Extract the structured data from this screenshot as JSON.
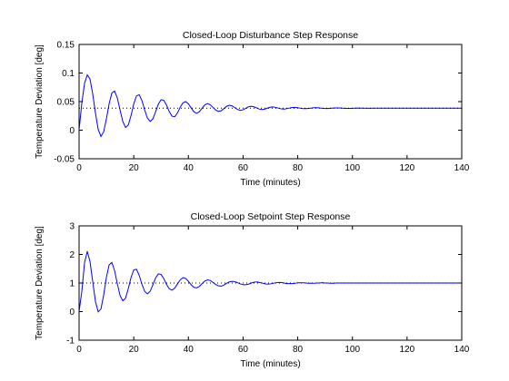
{
  "chart_data": [
    {
      "type": "line",
      "title": "Closed-Loop Disturbance Step Response",
      "xlabel": "Time (minutes)",
      "ylabel": "Temperature Deviation [deg]",
      "xlim": [
        0,
        140
      ],
      "ylim": [
        -0.05,
        0.15
      ],
      "xticks": [
        0,
        20,
        40,
        60,
        80,
        100,
        120,
        140
      ],
      "yticks": [
        -0.05,
        0,
        0.05,
        0.1,
        0.15
      ],
      "xtick_labels": [
        "0",
        "20",
        "40",
        "60",
        "80",
        "100",
        "120",
        "140"
      ],
      "ytick_labels": [
        "-0.05",
        "0",
        "0.05",
        "0.1",
        "0.15"
      ],
      "grid": false,
      "series": [
        {
          "style": "solid",
          "color": "#0000ff",
          "x": [
            0,
            1,
            2,
            3,
            4,
            5,
            6,
            7,
            8,
            9,
            10,
            11,
            12,
            13,
            14,
            15,
            16,
            17,
            18,
            19,
            20,
            21,
            22,
            23,
            24,
            25,
            26,
            27,
            28,
            29,
            30,
            31,
            32,
            33,
            34,
            35,
            36,
            37,
            38,
            39,
            40,
            41,
            42,
            43,
            44,
            45,
            46,
            47,
            48,
            49,
            50,
            51,
            52,
            53,
            54,
            55,
            56,
            57,
            58,
            59,
            60,
            61,
            62,
            63,
            64,
            65,
            66,
            67,
            68,
            69,
            70,
            71,
            72,
            73,
            74,
            75,
            76,
            77,
            78,
            79,
            80,
            81,
            82,
            83,
            84,
            85,
            86,
            87,
            88,
            89,
            90,
            91,
            92,
            93,
            94,
            95,
            96,
            97,
            98,
            99,
            100,
            102,
            104,
            106,
            108,
            110,
            115,
            120,
            125,
            130,
            135,
            140
          ],
          "y": [
            0,
            0.0473,
            0.0819,
            0.0968,
            0.0893,
            0.0632,
            0.0296,
            0.0012,
            -0.0109,
            -0.0029,
            0.0198,
            0.0465,
            0.0651,
            0.0684,
            0.0562,
            0.0352,
            0.0151,
            0.0048,
            0.0089,
            0.0253,
            0.0458,
            0.06,
            0.062,
            0.0518,
            0.0355,
            0.0212,
            0.0153,
            0.0198,
            0.0322,
            0.0456,
            0.0533,
            0.0523,
            0.0437,
            0.0325,
            0.0245,
            0.0237,
            0.0301,
            0.04,
            0.0478,
            0.05,
            0.0461,
            0.039,
            0.0322,
            0.0295,
            0.0322,
            0.0384,
            0.0442,
            0.0465,
            0.0444,
            0.0398,
            0.0352,
            0.0328,
            0.0339,
            0.0378,
            0.0419,
            0.0437,
            0.0425,
            0.0393,
            0.0362,
            0.0348,
            0.0356,
            0.0383,
            0.0409,
            0.0419,
            0.0409,
            0.0388,
            0.0368,
            0.0361,
            0.0369,
            0.0387,
            0.0402,
            0.0406,
            0.0398,
            0.0384,
            0.0372,
            0.0369,
            0.0376,
            0.0388,
            0.0397,
            0.0398,
            0.0393,
            0.0384,
            0.0377,
            0.0376,
            0.038,
            0.0387,
            0.0392,
            0.0393,
            0.0389,
            0.0383,
            0.0379,
            0.0379,
            0.0382,
            0.0386,
            0.0389,
            0.0389,
            0.0386,
            0.0383,
            0.0381,
            0.0381,
            0.0383,
            0.0386,
            0.0384,
            0.0382,
            0.0385,
            0.0384,
            0.0384,
            0.0385,
            0.0385,
            0.0385,
            0.0385,
            0.0385
          ]
        },
        {
          "style": "dotted",
          "color": "#000000",
          "x": [
            0,
            140
          ],
          "y": [
            0.0385,
            0.0385
          ]
        }
      ]
    },
    {
      "type": "line",
      "title": "Closed-Loop Setpoint Step Response",
      "xlabel": "Time (minutes)",
      "ylabel": "Temperature Deviation [deg]",
      "xlim": [
        0,
        140
      ],
      "ylim": [
        -1,
        3
      ],
      "xticks": [
        0,
        20,
        40,
        60,
        80,
        100,
        120,
        140
      ],
      "yticks": [
        -1,
        0,
        1,
        2,
        3
      ],
      "xtick_labels": [
        "0",
        "20",
        "40",
        "60",
        "80",
        "100",
        "120",
        "140"
      ],
      "ytick_labels": [
        "-1",
        "0",
        "1",
        "2",
        "3"
      ],
      "grid": false,
      "series": [
        {
          "style": "solid",
          "color": "#0000ff",
          "x": [
            0,
            1,
            2,
            3,
            4,
            5,
            6,
            7,
            8,
            9,
            10,
            11,
            12,
            13,
            14,
            15,
            16,
            17,
            18,
            19,
            20,
            21,
            22,
            23,
            24,
            25,
            26,
            27,
            28,
            29,
            30,
            31,
            32,
            33,
            34,
            35,
            36,
            37,
            38,
            39,
            40,
            41,
            42,
            43,
            44,
            45,
            46,
            47,
            48,
            49,
            50,
            51,
            52,
            53,
            54,
            55,
            56,
            57,
            58,
            59,
            60,
            61,
            62,
            63,
            64,
            65,
            66,
            67,
            68,
            69,
            70,
            71,
            72,
            73,
            74,
            75,
            76,
            77,
            78,
            79,
            80,
            81,
            82,
            83,
            84,
            85,
            86,
            87,
            88,
            89,
            90,
            91,
            92,
            93,
            94,
            95,
            96,
            97,
            98,
            99,
            100,
            102,
            104,
            106,
            108,
            110,
            115,
            120,
            125,
            130,
            135,
            140
          ],
          "y": [
            0,
            0.7,
            1.71,
            2.11,
            1.75,
            1.04,
            0.35,
            -0.01,
            0.09,
            0.58,
            1.2,
            1.64,
            1.72,
            1.43,
            0.97,
            0.56,
            0.38,
            0.47,
            0.8,
            1.19,
            1.46,
            1.48,
            1.27,
            0.96,
            0.71,
            0.62,
            0.71,
            0.94,
            1.18,
            1.32,
            1.3,
            1.15,
            0.95,
            0.8,
            0.75,
            0.82,
            0.97,
            1.11,
            1.19,
            1.16,
            1.06,
            0.94,
            0.85,
            0.83,
            0.88,
            0.98,
            1.07,
            1.11,
            1.09,
            1.02,
            0.95,
            0.9,
            0.89,
            0.93,
            0.99,
            1.04,
            1.06,
            1.05,
            1.01,
            0.97,
            0.94,
            0.94,
            0.96,
            1.0,
            1.03,
            1.04,
            1.02,
            1.0,
            0.97,
            0.96,
            0.97,
            0.99,
            1.01,
            1.02,
            1.02,
            1.0,
            0.98,
            0.98,
            0.98,
            0.99,
            1.01,
            1.01,
            1.01,
            1.0,
            0.99,
            0.99,
            0.99,
            1.0,
            1.0,
            1.01,
            1.0,
            1.0,
            0.99,
            0.99,
            1.0,
            1.0,
            1.0,
            1.0,
            1.0,
            1.0,
            1.0,
            1.0,
            1.0,
            1.0,
            1.0,
            1.0,
            1.0,
            1.0,
            1.0,
            1.0,
            1.0,
            1.0
          ]
        },
        {
          "style": "dotted",
          "color": "#000000",
          "x": [
            0,
            140
          ],
          "y": [
            1,
            1
          ]
        }
      ]
    }
  ]
}
